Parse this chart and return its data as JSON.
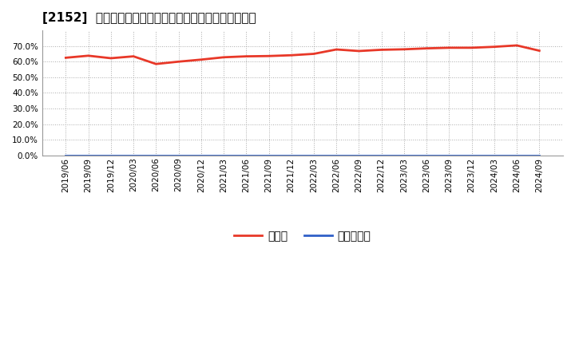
{
  "title": "[2152]  現頑金、有利子負債の総資産に対する比率の推移",
  "x_labels": [
    "2019/06",
    "2019/09",
    "2019/12",
    "2020/03",
    "2020/06",
    "2020/09",
    "2020/12",
    "2021/03",
    "2021/06",
    "2021/09",
    "2021/12",
    "2022/03",
    "2022/06",
    "2022/09",
    "2022/12",
    "2023/03",
    "2023/06",
    "2023/09",
    "2023/12",
    "2024/03",
    "2024/06",
    "2024/09"
  ],
  "cash_values": [
    0.625,
    0.638,
    0.622,
    0.634,
    0.585,
    0.6,
    0.613,
    0.628,
    0.634,
    0.636,
    0.641,
    0.65,
    0.678,
    0.668,
    0.676,
    0.679,
    0.685,
    0.689,
    0.689,
    0.695,
    0.704,
    0.67
  ],
  "debt_values": [
    0.0,
    0.0,
    0.0,
    0.0,
    0.0,
    0.0,
    0.0,
    0.0,
    0.0,
    0.0,
    0.0,
    0.0,
    0.0,
    0.0,
    0.0,
    0.0,
    0.0,
    0.0,
    0.0,
    0.0,
    0.0,
    0.0
  ],
  "cash_color": "#e83828",
  "debt_color": "#3060c8",
  "background_color": "#ffffff",
  "plot_bg_color": "#ffffff",
  "grid_color": "#aaaaaa",
  "legend_cash": "現頑金",
  "legend_debt": "有利子負債",
  "ylim": [
    0.0,
    0.8
  ],
  "yticks": [
    0.0,
    0.1,
    0.2,
    0.3,
    0.4,
    0.5,
    0.6,
    0.7
  ],
  "title_fontsize": 11,
  "tick_fontsize": 7.5,
  "legend_fontsize": 10,
  "line_width": 2.0
}
